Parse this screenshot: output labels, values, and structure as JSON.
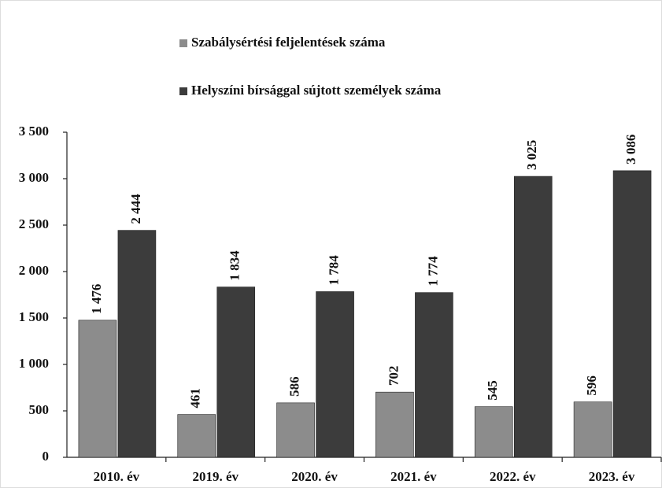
{
  "chart_data": {
    "type": "bar",
    "categories": [
      "2010. év",
      "2019. év",
      "2020. év",
      "2021. év",
      "2022. év",
      "2023. év"
    ],
    "series": [
      {
        "name": "Szabálysértési feljelentések száma",
        "color": "#8c8c8c",
        "values": [
          1476,
          461,
          586,
          702,
          545,
          596
        ],
        "value_labels": [
          "1 476",
          "461",
          "586",
          "702",
          "545",
          "596"
        ]
      },
      {
        "name": "Helyszíni bírsággal sújtott személyek száma",
        "color": "#3c3c3c",
        "values": [
          2444,
          1834,
          1784,
          1774,
          3025,
          3086
        ],
        "value_labels": [
          "2 444",
          "1 834",
          "1 784",
          "1 774",
          "3 025",
          "3 086"
        ]
      }
    ],
    "ylim": [
      0,
      3500
    ],
    "yticks": [
      0,
      500,
      {
        "value": 1000,
        "label": "1 000"
      },
      {
        "value": 1500,
        "label": "1 500"
      },
      {
        "value": 2000,
        "label": "2 000"
      },
      {
        "value": 2500,
        "label": "2 500"
      },
      {
        "value": 3000,
        "label": "3 000"
      },
      {
        "value": 3500,
        "label": "3 500"
      }
    ],
    "grid": false
  }
}
